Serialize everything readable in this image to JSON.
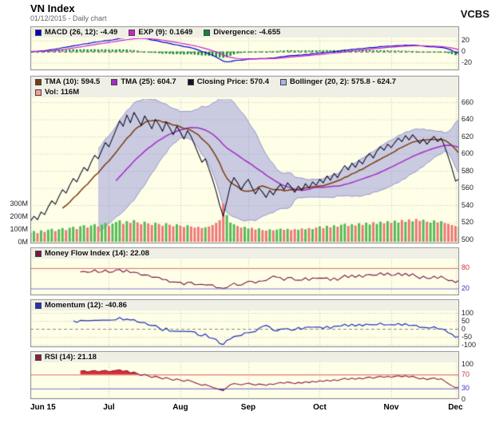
{
  "header": {
    "title": "VN Index",
    "subtitle": "01/12/2015 - Daily chart",
    "brand": "VCBS"
  },
  "panels": {
    "macd": {
      "legend": [
        {
          "label": "MACD (26, 12): -4.49",
          "color": "#0000CC"
        },
        {
          "label": "EXP (9): 0.1649",
          "color": "#CC22CC"
        },
        {
          "label": "Divergence: -4.655",
          "color": "#0E8A30"
        }
      ],
      "yticks": [
        {
          "label": "20",
          "value": 20
        },
        {
          "label": "0",
          "value": 0
        },
        {
          "label": "-20",
          "value": -20
        }
      ]
    },
    "main": {
      "legend_row1": [
        {
          "label": "TMA (10): 594.5",
          "color": "#7B3A10"
        },
        {
          "label": "TMA (25): 604.7",
          "color": "#A42CC8"
        },
        {
          "label": "Closing Price: 570.4",
          "color": "#11112A"
        },
        {
          "label": "Bollinger (20, 2): 575.8 - 624.7",
          "color": "#AAB2E8"
        }
      ],
      "legend_row2": [
        {
          "label": "Vol: 116M",
          "color": "#FF9C8A"
        }
      ],
      "yticks_right": [
        {
          "label": "660",
          "value": 660
        },
        {
          "label": "640",
          "value": 640
        },
        {
          "label": "620",
          "value": 620
        },
        {
          "label": "600",
          "value": 600
        },
        {
          "label": "580",
          "value": 580
        },
        {
          "label": "560",
          "value": 560
        },
        {
          "label": "540",
          "value": 540
        },
        {
          "label": "520",
          "value": 520
        },
        {
          "label": "500",
          "value": 500
        }
      ],
      "yticks_volume": [
        {
          "label": "300M",
          "value": 300
        },
        {
          "label": "200M",
          "value": 200
        },
        {
          "label": "100M",
          "value": 100
        },
        {
          "label": "0M",
          "value": 0
        }
      ]
    },
    "mfi": {
      "legend": [
        {
          "label": "Money Flow Index (14): 22.08",
          "color": "#7A1545"
        }
      ],
      "yticks": [
        {
          "label": "80",
          "value": 80,
          "color": "#CC3333"
        },
        {
          "label": "20",
          "value": 20,
          "color": "#3333CC"
        }
      ]
    },
    "momentum": {
      "legend": [
        {
          "label": "Momentum (12): -40.86",
          "color": "#2233BB"
        }
      ],
      "yticks": [
        {
          "label": "100",
          "value": 100
        },
        {
          "label": "50",
          "value": 50
        },
        {
          "label": "0",
          "value": 0
        },
        {
          "label": "-50",
          "value": -50
        },
        {
          "label": "-100",
          "value": -100
        }
      ]
    },
    "rsi": {
      "legend": [
        {
          "label": "RSI (14): 21.18",
          "color": "#8A1D45"
        }
      ],
      "yticks": [
        {
          "label": "100",
          "value": 100
        },
        {
          "label": "70",
          "value": 70,
          "color": "#CC3333"
        },
        {
          "label": "30",
          "value": 30,
          "color": "#3333CC"
        },
        {
          "label": "0",
          "value": 0
        }
      ]
    }
  },
  "xticks": [
    {
      "label": "Jun 15",
      "day": 0
    },
    {
      "label": "Jul",
      "day": 22
    },
    {
      "label": "Aug",
      "day": 42
    },
    {
      "label": "Sep",
      "day": 61
    },
    {
      "label": "Oct",
      "day": 81
    },
    {
      "label": "Nov",
      "day": 101
    },
    {
      "label": "Dec",
      "day": 119
    }
  ],
  "chart_data": {
    "type": "line",
    "title": "VN Index - Daily chart",
    "x_months": [
      "Jun 15",
      "Jul",
      "Aug",
      "Sep",
      "Oct",
      "Nov",
      "Dec"
    ],
    "n_points": 121,
    "price_panel": {
      "ylim": [
        500,
        660
      ],
      "yticks": [
        660,
        640,
        620,
        600,
        580,
        560,
        540,
        520,
        500
      ],
      "volume_yticks_m": [
        300,
        200,
        100,
        0
      ]
    },
    "series": {
      "close": [
        521,
        527,
        523,
        532,
        529,
        538,
        545,
        541,
        550,
        558,
        554,
        563,
        571,
        567,
        576,
        584,
        580,
        590,
        598,
        594,
        604,
        613,
        608,
        618,
        628,
        638,
        632,
        645,
        636,
        648,
        641,
        633,
        644,
        637,
        629,
        640,
        634,
        626,
        637,
        630,
        622,
        632,
        625,
        617,
        627,
        620,
        610,
        600,
        590,
        594,
        582,
        570,
        556,
        540,
        527,
        545,
        563,
        572,
        566,
        558,
        565,
        570,
        561,
        553,
        560,
        555,
        549,
        557,
        552,
        559,
        564,
        558,
        566,
        561,
        555,
        562,
        557,
        565,
        560,
        567,
        563,
        570,
        566,
        574,
        569,
        577,
        572,
        580,
        586,
        581,
        589,
        584,
        592,
        588,
        596,
        600,
        595,
        603,
        608,
        604,
        611,
        607,
        613,
        618,
        614,
        621,
        616,
        622,
        617,
        612,
        617,
        611,
        616,
        620,
        614,
        618,
        608,
        596,
        583,
        568,
        570.4
      ],
      "volume_m": [
        72,
        85,
        68,
        90,
        78,
        95,
        102,
        84,
        98,
        108,
        92,
        110,
        118,
        100,
        122,
        130,
        112,
        128,
        138,
        120,
        135,
        148,
        126,
        142,
        155,
        168,
        140,
        162,
        148,
        170,
        152,
        138,
        158,
        144,
        132,
        150,
        140,
        126,
        146,
        134,
        122,
        138,
        128,
        116,
        130,
        120,
        112,
        118,
        108,
        114,
        120,
        132,
        148,
        170,
        300,
        210,
        150,
        138,
        124,
        112,
        118,
        104,
        110,
        96,
        106,
        92,
        88,
        98,
        90,
        96,
        104,
        94,
        102,
        92,
        100,
        95,
        105,
        98,
        108,
        100,
        112,
        122,
        108,
        126,
        114,
        130,
        118,
        134,
        142,
        124,
        138,
        128,
        146,
        132,
        150,
        136,
        154,
        140,
        158,
        144,
        162,
        148,
        166,
        150,
        172,
        156,
        176,
        160,
        180,
        164,
        174,
        158,
        150,
        168,
        152,
        162,
        148,
        140,
        132,
        124,
        116
      ]
    },
    "indicator_panels": {
      "macd": {
        "slow": 26,
        "fast": 12,
        "signal": 9,
        "ylim": [
          -32,
          24
        ],
        "yticks": [
          20,
          0,
          -20
        ],
        "last_macd": -4.49,
        "last_signal": 0.1649,
        "last_divergence": -4.655
      },
      "money_flow_index": {
        "period": 14,
        "ylim": [
          0,
          108
        ],
        "ref_lines": [
          80,
          20
        ],
        "last": 22.08
      },
      "momentum": {
        "period": 12,
        "ylim": [
          -115,
          115
        ],
        "yticks": [
          100,
          50,
          0,
          -50,
          -100
        ],
        "last": -40.86
      },
      "rsi": {
        "period": 14,
        "ylim": [
          0,
          105
        ],
        "ref_lines": [
          70,
          30
        ],
        "last": 21.18
      }
    },
    "overlays": {
      "tma10": {
        "period": 10,
        "last": 594.5
      },
      "tma25": {
        "period": 25,
        "last": 604.7
      },
      "bollinger": {
        "period": 20,
        "stddev": 2,
        "last_lower": 575.8,
        "last_upper": 624.7
      },
      "close_last": 570.4,
      "volume_last_m": 116
    }
  },
  "colors": {
    "panel_bg": "#FFFFE8",
    "legend_bg": "#EFEFE6",
    "grid": "#C4C4C4",
    "border": "#808080",
    "macd_line": "#0000CC",
    "macd_signal": "#CC22CC",
    "macd_hist": "#0E8A30",
    "tma10": "#7B3A10",
    "tma25": "#A42CC8",
    "close": "#11112A",
    "bollinger_fill": "rgba(150,152,216,0.50)",
    "bollinger_edge": "rgba(118,122,200,0.90)",
    "vol_up": "#55BB55",
    "vol_down": "#EE7777",
    "mfi_line": "#7A1545",
    "momentum_line": "#2233BB",
    "rsi_line": "#8A1D45",
    "rsi_over_fill": "#D93030",
    "rsi_under_fill": "#4444CC",
    "ref_red": "#D96A6A",
    "ref_blue": "#7A7AD9",
    "axis_text": "#222222"
  }
}
